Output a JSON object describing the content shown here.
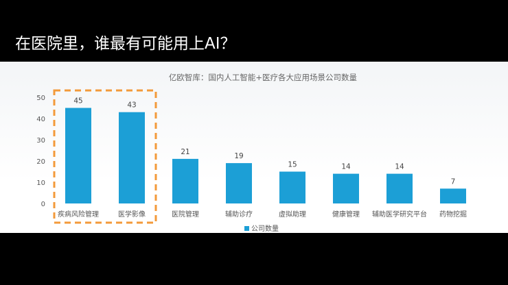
{
  "slide": {
    "title": "在医院里，谁最有可能用上AI？"
  },
  "colors": {
    "bar": "#1c9fd6",
    "highlight_box": "#f39a3a",
    "axis_text": "#555555",
    "gridline": "#e2e5e8"
  },
  "chart_data": {
    "type": "bar",
    "title": "亿欧智库：国内人工智能+医疗各大应用场景公司数量",
    "categories": [
      "疾病风险管理",
      "医学影像",
      "医院管理",
      "辅助诊疗",
      "虚拟助理",
      "健康管理",
      "辅助医学研究平台",
      "药物挖掘"
    ],
    "series": [
      {
        "name": "公司数量",
        "values": [
          45,
          43,
          21,
          19,
          15,
          14,
          14,
          7
        ]
      }
    ],
    "ylim": [
      0,
      50
    ],
    "yticks": [
      0,
      10,
      20,
      30,
      40,
      50
    ],
    "xlabel": "",
    "ylabel": "",
    "grid": false,
    "legend_position": "bottom",
    "highlighted_categories": [
      "疾病风险管理",
      "医学影像"
    ]
  }
}
